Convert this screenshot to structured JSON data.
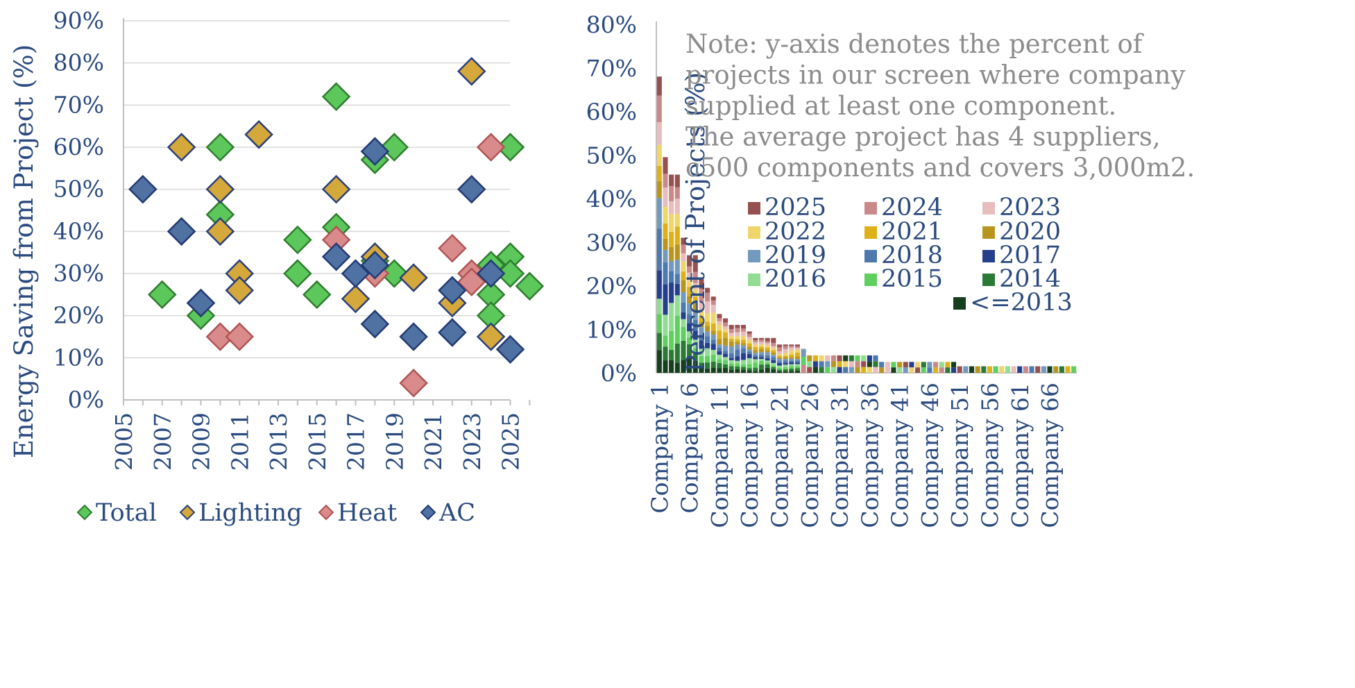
{
  "chart_data": [
    {
      "type": "scatter",
      "ylabel": "Energy Saving from Project (%)",
      "xlabel": "",
      "xlim": [
        2005,
        2026
      ],
      "ylim": [
        0,
        90
      ],
      "x_ticks": [
        "2005",
        "2007",
        "2009",
        "2011",
        "2013",
        "2015",
        "2017",
        "2019",
        "2021",
        "2023",
        "2025"
      ],
      "y_ticks": [
        "0%",
        "10%",
        "20%",
        "30%",
        "40%",
        "50%",
        "60%",
        "70%",
        "80%",
        "90%"
      ],
      "legend_position": "bottom",
      "series": [
        {
          "name": "Total",
          "color": "#5cc85c",
          "stroke": "#2e7d2e",
          "points": [
            [
              2007,
              25
            ],
            [
              2009,
              20
            ],
            [
              2010,
              60
            ],
            [
              2010,
              44
            ],
            [
              2014,
              38
            ],
            [
              2014,
              30
            ],
            [
              2015,
              25
            ],
            [
              2016,
              72
            ],
            [
              2016,
              41
            ],
            [
              2018,
              57
            ],
            [
              2018,
              33
            ],
            [
              2019,
              60
            ],
            [
              2019,
              30
            ],
            [
              2024,
              32
            ],
            [
              2024,
              25
            ],
            [
              2024,
              20
            ],
            [
              2025,
              60
            ],
            [
              2025,
              34
            ],
            [
              2025,
              30
            ],
            [
              2026,
              27
            ]
          ]
        },
        {
          "name": "Lighting",
          "color": "#d4a83a",
          "stroke": "#2a3f7a",
          "points": [
            [
              2008,
              60
            ],
            [
              2009,
              23
            ],
            [
              2010,
              50
            ],
            [
              2010,
              40
            ],
            [
              2011,
              30
            ],
            [
              2011,
              26
            ],
            [
              2012,
              63
            ],
            [
              2016,
              50
            ],
            [
              2017,
              24
            ],
            [
              2018,
              34
            ],
            [
              2020,
              29
            ],
            [
              2022,
              23
            ],
            [
              2023,
              78
            ],
            [
              2024,
              15
            ]
          ]
        },
        {
          "name": "Heat",
          "color": "#d98b8b",
          "stroke": "#b05454",
          "points": [
            [
              2010,
              15
            ],
            [
              2011,
              15
            ],
            [
              2016,
              38
            ],
            [
              2018,
              30
            ],
            [
              2020,
              4
            ],
            [
              2022,
              36
            ],
            [
              2023,
              30
            ],
            [
              2023,
              28
            ],
            [
              2024,
              60
            ]
          ]
        },
        {
          "name": "AC",
          "color": "#4f72a3",
          "stroke": "#233a73",
          "points": [
            [
              2006,
              50
            ],
            [
              2008,
              40
            ],
            [
              2009,
              23
            ],
            [
              2016,
              34
            ],
            [
              2017,
              30
            ],
            [
              2018,
              59
            ],
            [
              2018,
              32
            ],
            [
              2018,
              18
            ],
            [
              2020,
              15
            ],
            [
              2022,
              26
            ],
            [
              2022,
              16
            ],
            [
              2023,
              50
            ],
            [
              2024,
              30
            ],
            [
              2025,
              12
            ]
          ]
        }
      ]
    },
    {
      "type": "bar",
      "stacked": true,
      "ylabel": "Percent of Projects (%)",
      "xlabel": "",
      "ylim": [
        0,
        80
      ],
      "y_ticks": [
        "0%",
        "10%",
        "20%",
        "30%",
        "40%",
        "50%",
        "60%",
        "70%",
        "80%"
      ],
      "category_count": 70,
      "category_tick_labels": [
        "Company 1",
        "Company 6",
        "Company 11",
        "Company 16",
        "Company 21",
        "Company 26",
        "Company 31",
        "Company 36",
        "Company 41",
        "Company 46",
        "Company 51",
        "Company 56",
        "Company 61",
        "Company 66"
      ],
      "category_tick_indices": [
        1,
        6,
        11,
        16,
        21,
        26,
        31,
        36,
        41,
        46,
        51,
        56,
        61,
        66
      ],
      "totals": [
        68,
        49.5,
        45.5,
        45.5,
        31,
        27,
        27,
        21.5,
        19.5,
        17.5,
        13.5,
        12.5,
        11,
        11,
        11,
        9.5,
        8,
        8,
        8,
        8,
        6.5,
        6.5,
        6.5,
        6.5,
        5.5,
        4,
        4,
        4,
        4,
        4,
        4,
        4,
        4,
        4,
        4,
        4,
        4,
        2.5,
        2.5,
        2.5,
        2.5,
        2.5,
        2.5,
        2.5,
        2.5,
        2.5,
        2.5,
        2.5,
        2.5,
        2.5,
        1.5,
        1.5,
        1.5,
        1.5,
        1.5,
        1.5,
        1.5,
        1.5,
        1.5,
        1.5,
        1.5,
        1.5,
        1.5,
        1.5,
        1.5,
        1.5,
        1.5,
        1.5,
        1.5,
        1.5
      ],
      "series": [
        {
          "name": "2025",
          "color": "#955050"
        },
        {
          "name": "2024",
          "color": "#c98989"
        },
        {
          "name": "2023",
          "color": "#e8bdbd"
        },
        {
          "name": "2022",
          "color": "#f0d56a"
        },
        {
          "name": "2021",
          "color": "#ddb11a"
        },
        {
          "name": "2020",
          "color": "#b8961d"
        },
        {
          "name": "2019",
          "color": "#7399bf"
        },
        {
          "name": "2018",
          "color": "#4d79ad"
        },
        {
          "name": "2017",
          "color": "#263f8c"
        },
        {
          "name": "2016",
          "color": "#93dc93"
        },
        {
          "name": "2015",
          "color": "#5fcf5f"
        },
        {
          "name": "2014",
          "color": "#2a7a35"
        },
        {
          "name": "<=2013",
          "color": "#163f1e"
        }
      ],
      "note_lines": [
        "Note: y-axis denotes the percent of",
        "projects in our screen where company",
        "supplied at least one component.",
        "The average project has 4 suppliers,",
        "c500 components and covers 3,000m2."
      ]
    }
  ]
}
